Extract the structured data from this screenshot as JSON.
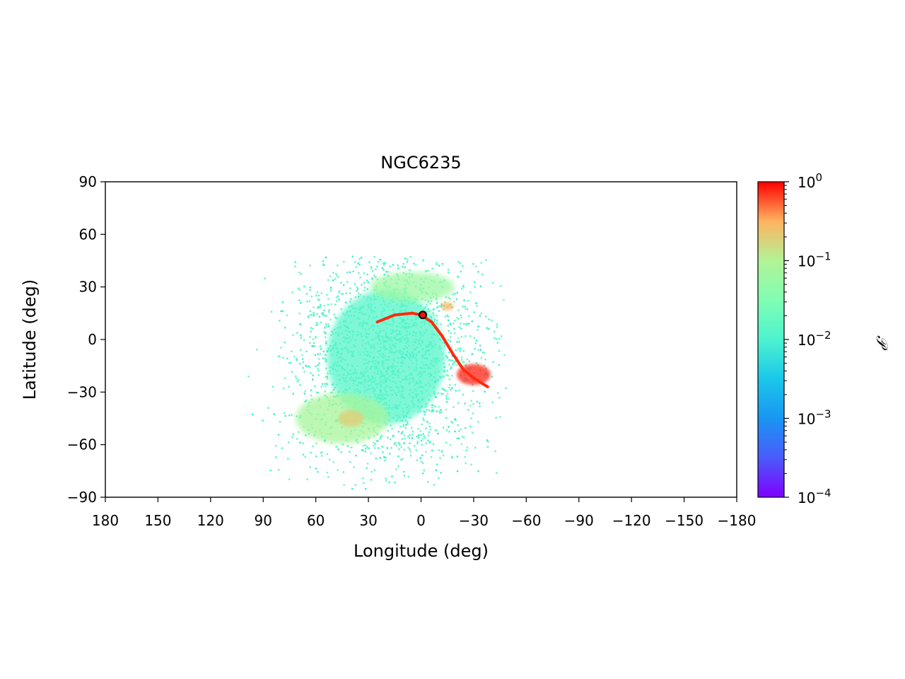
{
  "chart_data": {
    "type": "heatmap",
    "title": "NGC6235",
    "xlabel": "Longitude (deg)",
    "ylabel": "Latitude (deg)",
    "xlim": [
      180,
      -180
    ],
    "ylim": [
      -90,
      90
    ],
    "xticks": [
      180,
      150,
      120,
      90,
      60,
      30,
      0,
      -30,
      -60,
      -90,
      -120,
      -150,
      -180
    ],
    "yticks": [
      90,
      60,
      30,
      0,
      -30,
      -60,
      -90
    ],
    "xtick_labels": [
      "180",
      "150",
      "120",
      "90",
      "60",
      "30",
      "0",
      "−30",
      "−60",
      "−90",
      "−120",
      "−150",
      "−180"
    ],
    "ytick_labels": [
      "90",
      "60",
      "30",
      "0",
      "−30",
      "−60",
      "−90"
    ],
    "grid": false,
    "colormap": "rainbow",
    "colorbar": {
      "label": "𝒫",
      "scale": "log",
      "range": [
        0.0001,
        1
      ],
      "tick_labels": [
        {
          "base": "10",
          "exp": "0",
          "value": 1
        },
        {
          "base": "10",
          "exp": "−1",
          "value": 0.1
        },
        {
          "base": "10",
          "exp": "−2",
          "value": 0.01
        },
        {
          "base": "10",
          "exp": "−3",
          "value": 0.001
        },
        {
          "base": "10",
          "exp": "−4",
          "value": 0.0001
        }
      ]
    },
    "density_regions": [
      {
        "name": "envelope",
        "lon": 20,
        "lat": -10,
        "lon_spread": 28,
        "lat_spread": 32,
        "weight": 0.012
      },
      {
        "name": "northern-arc",
        "lon": 5,
        "lat": 30,
        "lon_spread": 20,
        "lat_spread": 7,
        "weight": 0.06
      },
      {
        "name": "southern-loop",
        "lon": 45,
        "lat": -45,
        "lon_spread": 22,
        "lat_spread": 12,
        "weight": 0.08
      },
      {
        "name": "southern-clump",
        "lon": 40,
        "lat": -45,
        "lon_spread": 6,
        "lat_spread": 4,
        "weight": 0.2
      },
      {
        "name": "stream-tail",
        "lon": -30,
        "lat": -20,
        "lon_spread": 8,
        "lat_spread": 5,
        "weight": 0.8
      },
      {
        "name": "northern-knot",
        "lon": -15,
        "lat": 19,
        "lon_spread": 3,
        "lat_spread": 2,
        "weight": 0.3
      }
    ],
    "stream_track": [
      {
        "lon": 25,
        "lat": 10
      },
      {
        "lon": 15,
        "lat": 14
      },
      {
        "lon": 5,
        "lat": 15
      },
      {
        "lon": 0,
        "lat": 14
      },
      {
        "lon": -6,
        "lat": 10
      },
      {
        "lon": -12,
        "lat": 2
      },
      {
        "lon": -18,
        "lat": -8
      },
      {
        "lon": -24,
        "lat": -17
      },
      {
        "lon": -30,
        "lat": -22
      },
      {
        "lon": -38,
        "lat": -27
      }
    ],
    "cluster_marker": {
      "lon": -1,
      "lat": 14
    }
  }
}
